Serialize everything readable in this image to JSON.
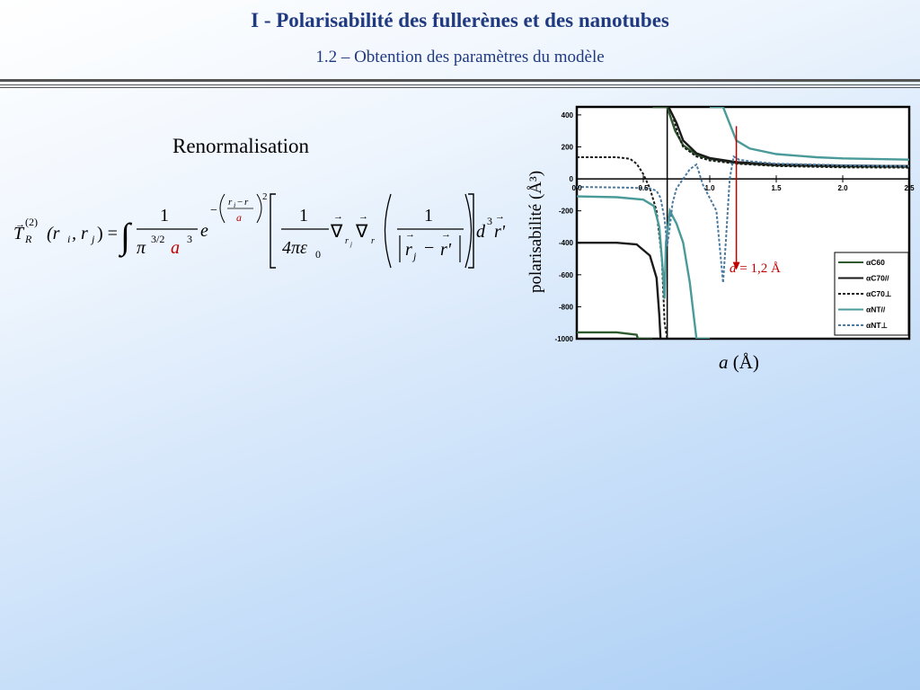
{
  "slide": {
    "title": "I  - Polarisabilité des fullerènes et des nanotubes",
    "subtitle": "1.2 – Obtention des paramètres du modèle",
    "section_heading": "Renormalisation"
  },
  "formula": {
    "lhs_T": "T",
    "lhs_sub": "R",
    "lhs_sup": "(2)",
    "lhs_args": "(r",
    "lhs_i": "i",
    "lhs_comma": ", r",
    "lhs_j": "j",
    "lhs_close": ") =",
    "integral": "∫",
    "one": "1",
    "pi": "π",
    "pi_exp": "3/2",
    "a_red": "a",
    "a_exp": "3",
    "e": "e",
    "minus": "−",
    "exp_ri": "r",
    "exp_i": "i",
    "exp_minus": "−",
    "exp_r": "r",
    "exp_a": "a",
    "exp_sq": "2",
    "four_pi_eps": "4πε",
    "eps_sub": "0",
    "nabla": "∇",
    "nabla_sub1": "r",
    "nabla_sub1j": "j",
    "nabla_sub2": "r",
    "abs_r": "r",
    "abs_j": "j",
    "abs_minus": "−",
    "abs_rp": "r'",
    "d3": "d",
    "d3_exp": "3",
    "d3_r": "r'"
  },
  "chart_data": {
    "type": "line",
    "xlabel": "a (Å)",
    "ylabel": "polarisabilité (Å³)",
    "xlim": [
      0.0,
      2.5
    ],
    "ylim": [
      -1000,
      450
    ],
    "xticks": [
      "0.0",
      "0.5",
      "1.0",
      "1.5",
      "2.0",
      "2.5"
    ],
    "yticks": [
      "400",
      "200",
      "0",
      "-200",
      "-400",
      "-600",
      "-800",
      "-1000"
    ],
    "legend_position": "bottom-right",
    "series": [
      {
        "name": "αC60",
        "color": "#2f5a2f",
        "style": "solid",
        "points": [
          [
            0.0,
            -960
          ],
          [
            0.3,
            -960
          ],
          [
            0.45,
            -975
          ],
          [
            0.46,
            -1000
          ],
          [
            0.57,
            -1000
          ],
          [
            0.57,
            450
          ],
          [
            0.68,
            450
          ],
          [
            0.74,
            300
          ],
          [
            0.8,
            210
          ],
          [
            0.9,
            150
          ],
          [
            1.0,
            125
          ],
          [
            1.2,
            100
          ],
          [
            1.5,
            85
          ],
          [
            2.0,
            78
          ],
          [
            2.5,
            75
          ]
        ]
      },
      {
        "name": "αC70//",
        "color": "#1a1a1a",
        "style": "solid",
        "points": [
          [
            0.0,
            -400
          ],
          [
            0.3,
            -400
          ],
          [
            0.45,
            -410
          ],
          [
            0.55,
            -480
          ],
          [
            0.6,
            -620
          ],
          [
            0.62,
            -850
          ],
          [
            0.63,
            -1000
          ],
          [
            0.69,
            450
          ],
          [
            0.75,
            350
          ],
          [
            0.8,
            240
          ],
          [
            0.9,
            160
          ],
          [
            1.0,
            130
          ],
          [
            1.2,
            105
          ],
          [
            1.5,
            90
          ],
          [
            2.0,
            82
          ],
          [
            2.5,
            80
          ]
        ]
      },
      {
        "name": "αC70⊥",
        "color": "#1a1a1a",
        "style": "dotted",
        "points": [
          [
            0.0,
            135
          ],
          [
            0.3,
            135
          ],
          [
            0.4,
            125
          ],
          [
            0.45,
            95
          ],
          [
            0.5,
            30
          ],
          [
            0.55,
            -60
          ],
          [
            0.6,
            -200
          ],
          [
            0.64,
            -500
          ],
          [
            0.66,
            -900
          ],
          [
            0.68,
            -1000
          ],
          [
            0.72,
            400
          ],
          [
            0.76,
            280
          ],
          [
            0.8,
            200
          ],
          [
            0.9,
            140
          ],
          [
            1.0,
            115
          ],
          [
            1.2,
            95
          ],
          [
            1.5,
            80
          ],
          [
            2.0,
            72
          ],
          [
            2.5,
            70
          ]
        ]
      },
      {
        "name": "αNT//",
        "color": "#4a9a9a",
        "style": "solid",
        "points": [
          [
            0.0,
            -110
          ],
          [
            0.3,
            -115
          ],
          [
            0.5,
            -130
          ],
          [
            0.58,
            -170
          ],
          [
            0.62,
            -300
          ],
          [
            0.65,
            -600
          ],
          [
            0.66,
            -750
          ],
          [
            0.67,
            -400
          ],
          [
            0.7,
            -200
          ],
          [
            0.75,
            -280
          ],
          [
            0.8,
            -400
          ],
          [
            0.85,
            -650
          ],
          [
            0.9,
            -1000
          ],
          [
            1.0,
            -1000
          ],
          [
            1.0,
            450
          ],
          [
            1.1,
            450
          ],
          [
            1.2,
            240
          ],
          [
            1.3,
            190
          ],
          [
            1.5,
            155
          ],
          [
            1.8,
            135
          ],
          [
            2.0,
            128
          ],
          [
            2.5,
            120
          ]
        ]
      },
      {
        "name": "αNT⊥",
        "color": "#4a7aa0",
        "style": "dotted",
        "points": [
          [
            0.0,
            -50
          ],
          [
            0.4,
            -55
          ],
          [
            0.55,
            -60
          ],
          [
            0.6,
            -75
          ],
          [
            0.63,
            -120
          ],
          [
            0.66,
            -250
          ],
          [
            0.68,
            -420
          ],
          [
            0.7,
            -300
          ],
          [
            0.72,
            -150
          ],
          [
            0.75,
            -60
          ],
          [
            0.8,
            0
          ],
          [
            0.85,
            60
          ],
          [
            0.9,
            90
          ],
          [
            0.95,
            -40
          ],
          [
            1.05,
            -200
          ],
          [
            1.1,
            -650
          ],
          [
            1.12,
            -400
          ],
          [
            1.15,
            0
          ],
          [
            1.18,
            140
          ],
          [
            1.22,
            120
          ],
          [
            1.3,
            110
          ],
          [
            1.5,
            95
          ],
          [
            2.0,
            85
          ],
          [
            2.5,
            80
          ]
        ]
      }
    ],
    "annotation": {
      "text_var": "a",
      "text_rest": " = 1,2 Å",
      "x": 1.2,
      "color": "#c00000"
    }
  }
}
